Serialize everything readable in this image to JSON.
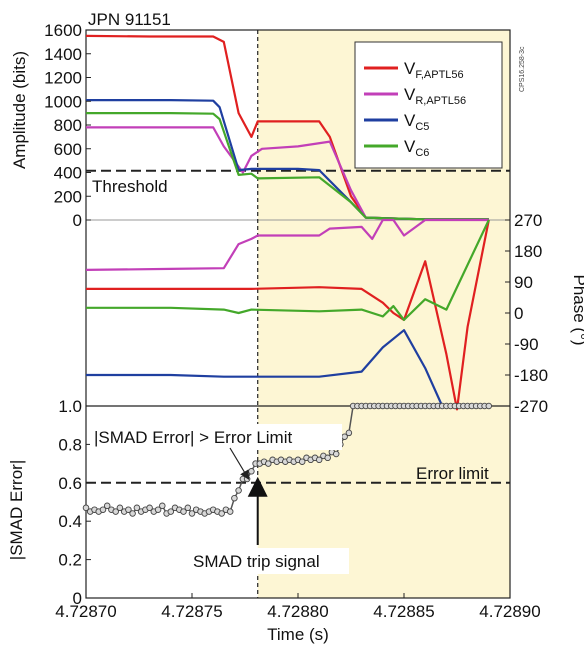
{
  "chart_data": [
    {
      "panel": "amplitude",
      "type": "line",
      "title": "JPN 91151",
      "ylabel": "Amplitude (bits)",
      "xlim": [
        4.7287,
        4.7289
      ],
      "ylim": [
        0,
        1600
      ],
      "yticks": [
        0,
        200,
        400,
        600,
        800,
        1000,
        1200,
        1400,
        1600
      ],
      "threshold": {
        "label": "Threshold",
        "value": 415
      },
      "figure_id": "CPS16.258-3c",
      "legend": {
        "position": "top-right"
      },
      "series": [
        {
          "name": "V",
          "sub": "F,APTL56",
          "color": "#e02020",
          "x": [
            4.7287,
            4.72873,
            4.72876,
            4.728765,
            4.728772,
            4.728778,
            4.728781,
            4.72881,
            4.728815,
            4.728825,
            4.728832,
            4.72886,
            4.72889
          ],
          "y": [
            1550,
            1545,
            1545,
            1500,
            900,
            700,
            830,
            830,
            700,
            200,
            20,
            5,
            5
          ]
        },
        {
          "name": "V",
          "sub": "R,APTL56",
          "color": "#c23fb8",
          "x": [
            4.7287,
            4.72874,
            4.72876,
            4.728765,
            4.728774,
            4.728778,
            4.728783,
            4.7288,
            4.728815,
            4.728825,
            4.728832,
            4.72886,
            4.72889
          ],
          "y": [
            780,
            780,
            780,
            620,
            400,
            540,
            600,
            620,
            660,
            250,
            20,
            5,
            5
          ]
        },
        {
          "name": "V",
          "sub": "C5",
          "color": "#1f3fa0",
          "x": [
            4.7287,
            4.72874,
            4.72876,
            4.728763,
            4.728772,
            4.728778,
            4.7288,
            4.72881,
            4.728825,
            4.728832,
            4.72886,
            4.72889
          ],
          "y": [
            1010,
            1010,
            1005,
            950,
            420,
            430,
            430,
            420,
            150,
            20,
            5,
            5
          ]
        },
        {
          "name": "V",
          "sub": "C6",
          "color": "#44a82a",
          "x": [
            4.7287,
            4.72874,
            4.72876,
            4.728763,
            4.728772,
            4.728778,
            4.728781,
            4.72881,
            4.728825,
            4.728832,
            4.72886,
            4.72889
          ],
          "y": [
            900,
            900,
            895,
            850,
            380,
            390,
            350,
            360,
            150,
            20,
            5,
            5
          ]
        }
      ]
    },
    {
      "panel": "phase",
      "type": "line",
      "ylabel": "Phase (°)",
      "xlim": [
        4.7287,
        4.7289
      ],
      "ylim": [
        -270,
        270
      ],
      "yticks": [
        -270,
        -180,
        -90,
        0,
        90,
        180,
        270
      ],
      "series": [
        {
          "color": "#c23fb8",
          "x": [
            4.7287,
            4.72874,
            4.728765,
            4.728772,
            4.728778,
            4.728781,
            4.72881,
            4.728815,
            4.72883,
            4.728835,
            4.72884,
            4.728845,
            4.72885,
            4.72886,
            4.72887,
            4.72889
          ],
          "y": [
            125,
            128,
            130,
            200,
            215,
            225,
            225,
            245,
            250,
            215,
            270,
            270,
            225,
            270,
            270,
            270
          ]
        },
        {
          "color": "#e02020",
          "x": [
            4.7287,
            4.72874,
            4.728778,
            4.72881,
            4.72883,
            4.72884,
            4.728845,
            4.72885,
            4.72886,
            4.72887,
            4.728875,
            4.72888,
            4.72889
          ],
          "y": [
            70,
            70,
            70,
            75,
            70,
            30,
            0,
            -20,
            150,
            -120,
            -280,
            -40,
            270
          ]
        },
        {
          "color": "#44a82a",
          "x": [
            4.7287,
            4.72874,
            4.728765,
            4.728772,
            4.728778,
            4.72881,
            4.72883,
            4.72884,
            4.728845,
            4.72885,
            4.72886,
            4.72887,
            4.72889
          ],
          "y": [
            15,
            15,
            10,
            0,
            10,
            5,
            10,
            -10,
            20,
            -20,
            40,
            10,
            270
          ]
        },
        {
          "color": "#1f3fa0",
          "x": [
            4.7287,
            4.72874,
            4.728765,
            4.72881,
            4.72883,
            4.72884,
            4.72885,
            4.72886,
            4.728868,
            4.72887,
            4.72889
          ],
          "y": [
            -180,
            -180,
            -185,
            -185,
            -170,
            -100,
            -50,
            -160,
            -270,
            -270,
            -270
          ]
        }
      ]
    },
    {
      "panel": "smad",
      "type": "line",
      "xlabel": "Time (s)",
      "ylabel": "|SMAD Error|",
      "xlim": [
        4.7287,
        4.7289
      ],
      "ylim": [
        0,
        1.0
      ],
      "xticks": [
        "4.72870",
        "4.72875",
        "4.72880",
        "4.72885",
        "4.72890"
      ],
      "yticks": [
        "0",
        "0.2",
        "0.4",
        "0.6",
        "0.8",
        "1.0"
      ],
      "error_limit": {
        "label": "Error limit",
        "value": 0.6
      },
      "trip_time": 4.728781,
      "annotations": {
        "smad_exceeds": "|SMAD Error| > Error Limit",
        "trip_signal": "SMAD trip signal"
      },
      "series": [
        {
          "color": "#555555",
          "x": [
            4.7287,
            4.728702,
            4.728704,
            4.728706,
            4.728708,
            4.72871,
            4.728712,
            4.728714,
            4.728716,
            4.728718,
            4.72872,
            4.728722,
            4.728724,
            4.728726,
            4.728728,
            4.72873,
            4.728732,
            4.728734,
            4.728736,
            4.728738,
            4.72874,
            4.728742,
            4.728744,
            4.728746,
            4.728748,
            4.72875,
            4.728752,
            4.728754,
            4.728756,
            4.728758,
            4.72876,
            4.728762,
            4.728764,
            4.728766,
            4.728768,
            4.72877,
            4.728772,
            4.728774,
            4.728776,
            4.728778,
            4.72878,
            4.728782,
            4.728784,
            4.728786,
            4.728788,
            4.72879,
            4.728792,
            4.728794,
            4.728796,
            4.728798,
            4.7288,
            4.728802,
            4.728804,
            4.728806,
            4.728808,
            4.72881,
            4.728812,
            4.728814,
            4.728816,
            4.728818,
            4.72882,
            4.728822,
            4.728824,
            4.728826,
            4.728828,
            4.72883,
            4.728832,
            4.728834,
            4.728836,
            4.728838,
            4.72884,
            4.728842,
            4.728844,
            4.728846,
            4.728848,
            4.72885,
            4.728852,
            4.728854,
            4.728856,
            4.728858,
            4.72886,
            4.728862,
            4.728864,
            4.728866,
            4.728868,
            4.72887,
            4.728872,
            4.728874,
            4.728876,
            4.728878,
            4.72888,
            4.728882,
            4.728884,
            4.728886,
            4.728888,
            4.72889
          ],
          "y": [
            0.47,
            0.45,
            0.46,
            0.45,
            0.46,
            0.48,
            0.46,
            0.45,
            0.47,
            0.45,
            0.46,
            0.44,
            0.47,
            0.45,
            0.46,
            0.47,
            0.45,
            0.46,
            0.48,
            0.44,
            0.45,
            0.47,
            0.46,
            0.45,
            0.47,
            0.44,
            0.46,
            0.45,
            0.44,
            0.45,
            0.46,
            0.45,
            0.44,
            0.46,
            0.45,
            0.52,
            0.56,
            0.62,
            0.62,
            0.66,
            0.7,
            0.7,
            0.71,
            0.7,
            0.72,
            0.71,
            0.72,
            0.71,
            0.72,
            0.71,
            0.72,
            0.71,
            0.73,
            0.72,
            0.73,
            0.72,
            0.74,
            0.73,
            0.76,
            0.75,
            0.8,
            0.84,
            0.86,
            1.0,
            1.0,
            1.0,
            1.0,
            1.0,
            1.0,
            1.0,
            1.0,
            1.0,
            1.0,
            1.0,
            1.0,
            1.0,
            1.0,
            1.0,
            1.0,
            1.0,
            1.0,
            1.0,
            1.0,
            1.0,
            1.0,
            1.0,
            1.0,
            1.0,
            1.0,
            1.0,
            1.0,
            1.0,
            1.0,
            1.0,
            1.0,
            1.0
          ]
        }
      ]
    }
  ]
}
